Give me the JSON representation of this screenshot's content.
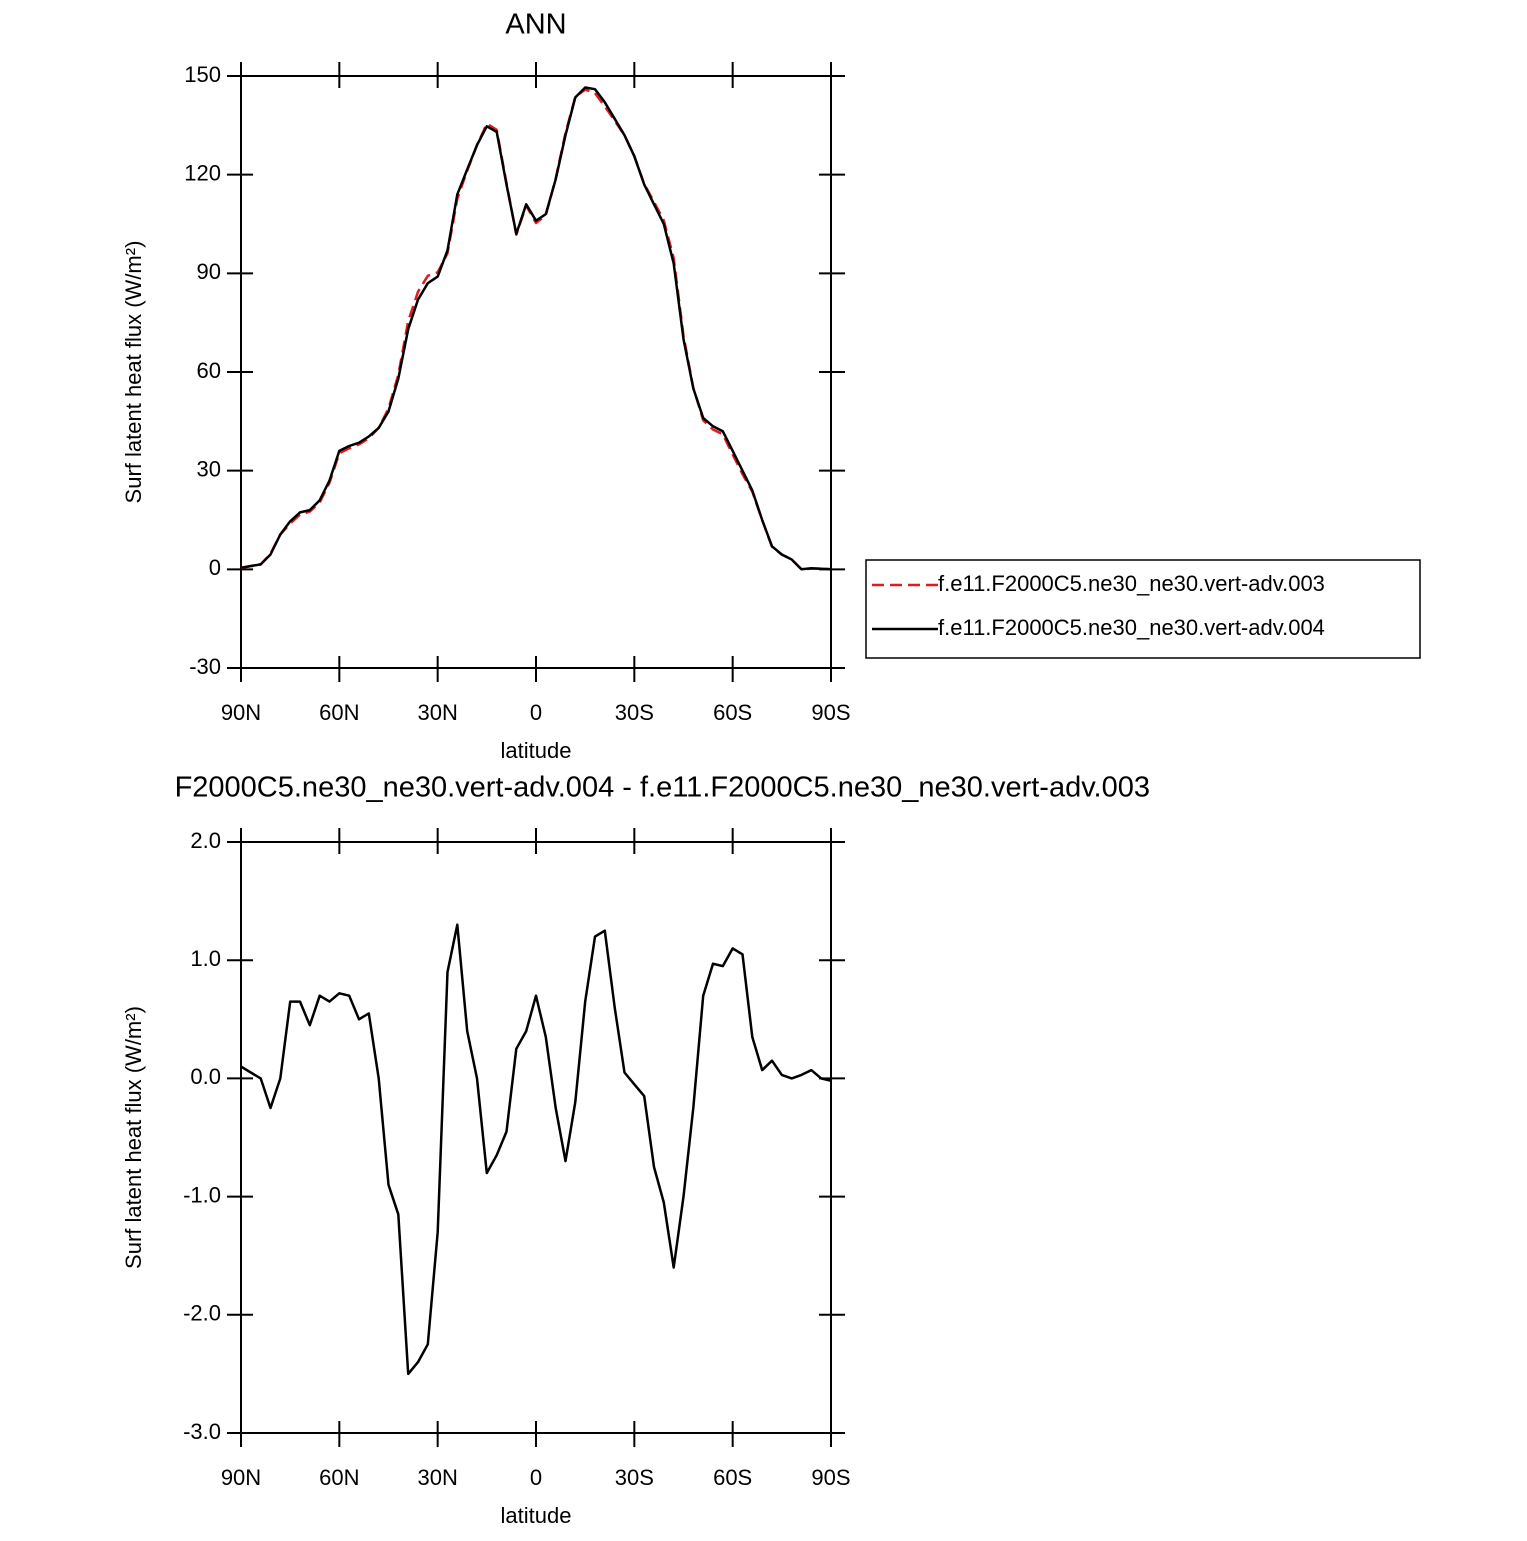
{
  "chart_data": [
    {
      "type": "line",
      "title": "ANN",
      "xlabel": "latitude",
      "ylabel": "Surf latent heat flux (W/m²)",
      "x": [
        90,
        87,
        84,
        81,
        78,
        75,
        72,
        69,
        66,
        63,
        60,
        57,
        54,
        51,
        48,
        45,
        42,
        39,
        36,
        33,
        30,
        27,
        24,
        21,
        18,
        15,
        12,
        9,
        6,
        3,
        0,
        -3,
        -6,
        -9,
        -12,
        -15,
        -18,
        -21,
        -24,
        -27,
        -30,
        -33,
        -36,
        -39,
        -42,
        -45,
        -48,
        -51,
        -54,
        -57,
        -60,
        -63,
        -66,
        -69,
        -72,
        -75,
        -78,
        -81,
        -84,
        -87,
        -90
      ],
      "series": [
        {
          "name": "f.e11.F2000C5.ne30_ne30.vert-adv.003",
          "color": "#e41a1c",
          "style": "dashed",
          "values": [
            0.4,
            0.95,
            1.5,
            4.75,
            10.6,
            13.95,
            16.65,
            17.55,
            20.3,
            26.35,
            35.28,
            36.8,
            38,
            39.85,
            43,
            48.9,
            59.15,
            75.5,
            84.4,
            89.25,
            90.3,
            96.1,
            112.7,
            121.2,
            129,
            135.5,
            133.65,
            117.45,
            101.75,
            110.6,
            105.3,
            107.65,
            118.85,
            132.7,
            143.7,
            145.85,
            144.8,
            140.75,
            136.4,
            131.95,
            125.65,
            117.15,
            111.75,
            106.05,
            94.6,
            71,
            55.25,
            45.3,
            42.53,
            41.05,
            34.9,
            28.95,
            23.65,
            14.93,
            6.85,
            4.47,
            3,
            -0.03,
            0.23,
            0.2,
            0.02
          ]
        },
        {
          "name": "f.e11.F2000C5.ne30_ne30.vert-adv.004",
          "color": "#000000",
          "style": "solid",
          "values": [
            0.5,
            1,
            1.5,
            4.5,
            10.6,
            14.6,
            17.3,
            18,
            21,
            27,
            36,
            37.5,
            38.5,
            40.4,
            43,
            48,
            58,
            73,
            82,
            87,
            89,
            97,
            114,
            121.6,
            129,
            134.7,
            133,
            117,
            102,
            111,
            106,
            108,
            118.6,
            132,
            143.5,
            146.5,
            146,
            142,
            137,
            132,
            125.6,
            117,
            111,
            105,
            93,
            70,
            55,
            46,
            43.5,
            42,
            36,
            30,
            24,
            15,
            7,
            4.5,
            3,
            0,
            0.3,
            0.2,
            0
          ]
        }
      ],
      "xlim": [
        90,
        -90
      ],
      "xticks": [
        {
          "value": 90,
          "label": "90N"
        },
        {
          "value": 60,
          "label": "60N"
        },
        {
          "value": 30,
          "label": "30N"
        },
        0,
        {
          "value": -30,
          "label": "30S"
        },
        {
          "value": -60,
          "label": "60S"
        },
        {
          "value": -90,
          "label": "90S"
        }
      ],
      "ylim": [
        -30,
        150
      ],
      "yticks": [
        -30,
        0,
        30,
        60,
        90,
        120,
        150
      ],
      "legend": "right"
    },
    {
      "type": "line",
      "title": "F2000C5.ne30_ne30.vert-adv.004 - f.e11.F2000C5.ne30_ne30.vert-adv.003",
      "xlabel": "latitude",
      "ylabel": "Surf latent heat flux (W/m²)",
      "x": [
        90,
        87,
        84,
        81,
        78,
        75,
        72,
        69,
        66,
        63,
        60,
        57,
        54,
        51,
        48,
        45,
        42,
        39,
        36,
        33,
        30,
        27,
        24,
        21,
        18,
        15,
        12,
        9,
        6,
        3,
        0,
        -3,
        -6,
        -9,
        -12,
        -15,
        -18,
        -21,
        -24,
        -27,
        -30,
        -33,
        -36,
        -39,
        -42,
        -45,
        -48,
        -51,
        -54,
        -57,
        -60,
        -63,
        -66,
        -69,
        -72,
        -75,
        -78,
        -81,
        -84,
        -87,
        -90
      ],
      "series": [
        {
          "color": "#000000",
          "style": "solid",
          "values": [
            0.1,
            0.05,
            0,
            -0.25,
            0,
            0.65,
            0.65,
            0.45,
            0.7,
            0.65,
            0.72,
            0.7,
            0.5,
            0.55,
            0,
            -0.9,
            -1.15,
            -2.5,
            -2.4,
            -2.25,
            -1.3,
            0.9,
            1.3,
            0.4,
            0,
            -0.8,
            -0.65,
            -0.45,
            0.25,
            0.4,
            0.7,
            0.35,
            -0.25,
            -0.7,
            -0.2,
            0.65,
            1.2,
            1.25,
            0.6,
            0.05,
            -0.05,
            -0.15,
            -0.75,
            -1.05,
            -1.6,
            -1,
            -0.25,
            0.7,
            0.97,
            0.95,
            1.1,
            1.05,
            0.35,
            0.07,
            0.15,
            0.03,
            0,
            0.03,
            0.07,
            0,
            -0.02
          ]
        }
      ],
      "xlim": [
        90,
        -90
      ],
      "xticks": [
        {
          "value": 90,
          "label": "90N"
        },
        {
          "value": 60,
          "label": "60N"
        },
        {
          "value": 30,
          "label": "30N"
        },
        0,
        {
          "value": -30,
          "label": "30S"
        },
        {
          "value": -60,
          "label": "60S"
        },
        {
          "value": -90,
          "label": "90S"
        }
      ],
      "ylim": [
        -3,
        2
      ],
      "yticks": [
        {
          "value": -3,
          "label": "-3.0"
        },
        {
          "value": -2,
          "label": "-2.0"
        },
        {
          "value": -1,
          "label": "-1.0"
        },
        {
          "value": 0,
          "label": "0.0"
        },
        {
          "value": 1,
          "label": "1.0"
        },
        {
          "value": 2,
          "label": "2.0"
        }
      ]
    }
  ]
}
